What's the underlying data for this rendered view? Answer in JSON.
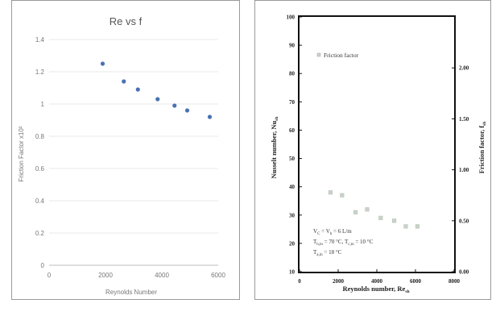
{
  "chart_data": [
    {
      "type": "scatter",
      "title": "Re vs f",
      "xlabel": "Reynolds Number",
      "ylabel": "Friction Factor x10²",
      "xlim": [
        0,
        6000
      ],
      "ylim": [
        0,
        1.4
      ],
      "x_ticks": [
        "0",
        "2000",
        "4000",
        "6000"
      ],
      "y_ticks": [
        "0",
        "0.2",
        "0.4",
        "0.6",
        "0.8",
        "1",
        "1.2",
        "1.4"
      ],
      "grid": true,
      "marker_color": "#4a72b4",
      "points": [
        {
          "x": 1900,
          "y": 1.25
        },
        {
          "x": 2650,
          "y": 1.14
        },
        {
          "x": 3150,
          "y": 1.09
        },
        {
          "x": 3850,
          "y": 1.03
        },
        {
          "x": 4450,
          "y": 0.99
        },
        {
          "x": 4900,
          "y": 0.96
        },
        {
          "x": 5700,
          "y": 0.92
        }
      ]
    },
    {
      "type": "scatter",
      "xlabel": "Reynolds number, Re",
      "xlabel_sub": "sh",
      "ylabel_left": "Nusselt number, Nu",
      "ylabel_left_sub": "sh",
      "ylabel_right": "Friction factor, f",
      "ylabel_right_sub": "sh",
      "xlim": [
        0,
        8000
      ],
      "ylim_left": [
        10,
        100
      ],
      "ylim_right": [
        0,
        2.5
      ],
      "x_ticks": [
        "0",
        "2000",
        "4000",
        "6000",
        "8000"
      ],
      "y_ticks_left": [
        "10",
        "20",
        "30",
        "40",
        "50",
        "60",
        "70",
        "80",
        "90",
        "100"
      ],
      "y_ticks_right": [
        "0.00",
        "0.50",
        "1.00",
        "1.50",
        "2.00"
      ],
      "legend": {
        "label": "Friction factor",
        "position": "top-left"
      },
      "marker_color": "#c9d3c9",
      "annotation": [
        {
          "main": "V",
          "sub1": "C",
          "mid": " = V",
          "sub2": "h",
          "tail": " = 6 L/m"
        },
        {
          "main": "T",
          "sub1": "h,in",
          "mid": " = 70 °C, T",
          "sub2": "c,in",
          "tail": " = 10 °C"
        },
        {
          "main": "T",
          "sub1": "a,in",
          "mid": " = 18 °C",
          "sub2": "",
          "tail": ""
        }
      ],
      "points": [
        {
          "x": 1600,
          "y": 38
        },
        {
          "x": 2200,
          "y": 37
        },
        {
          "x": 2900,
          "y": 31
        },
        {
          "x": 3500,
          "y": 32
        },
        {
          "x": 4200,
          "y": 29
        },
        {
          "x": 4900,
          "y": 28
        },
        {
          "x": 5500,
          "y": 26
        },
        {
          "x": 6100,
          "y": 26
        }
      ]
    }
  ]
}
